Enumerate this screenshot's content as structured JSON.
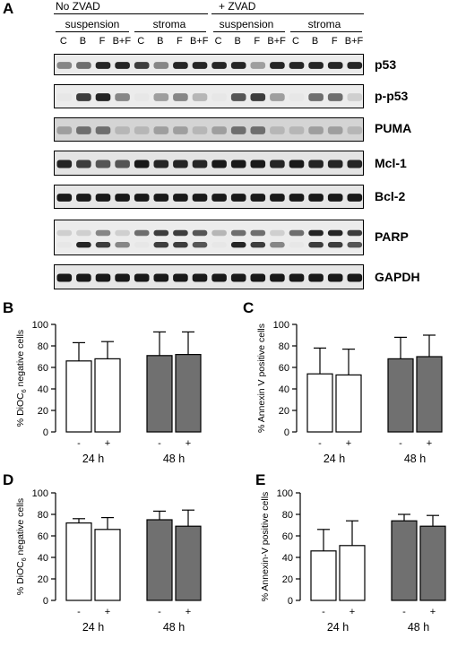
{
  "panel_a": {
    "letter": "A",
    "treatments": [
      {
        "label": "No ZVAD"
      },
      {
        "label": "+ ZVAD"
      }
    ],
    "groups": [
      "suspension",
      "stroma",
      "suspension",
      "stroma"
    ],
    "lanes": [
      "C",
      "B",
      "F",
      "B+F",
      "C",
      "B",
      "F",
      "B+F",
      "C",
      "B",
      "F",
      "B+F",
      "C",
      "B",
      "F",
      "B+F"
    ],
    "blots": [
      {
        "protein": "p53"
      },
      {
        "protein": "p-p53"
      },
      {
        "protein": "PUMA"
      },
      {
        "protein": "Mcl-1"
      },
      {
        "protein": "Bcl-2"
      },
      {
        "protein": "PARP"
      },
      {
        "protein": "GAPDH"
      }
    ]
  },
  "chart_data": [
    {
      "panel": "B",
      "type": "bar",
      "ylabel_main": "% DiOC",
      "ylabel_sub": "6",
      "ylabel_rest": " negative cells",
      "ylim": [
        0,
        100
      ],
      "yticks": [
        0,
        20,
        40,
        60,
        80,
        100
      ],
      "categories": [
        "-",
        "+",
        "-",
        "+"
      ],
      "groups": [
        "24 h",
        "48 h"
      ],
      "values": [
        66,
        68,
        71,
        72
      ],
      "errors": [
        17,
        16,
        22,
        21
      ],
      "colors": [
        "#ffffff",
        "#ffffff",
        "#707070",
        "#707070"
      ]
    },
    {
      "panel": "C",
      "type": "bar",
      "ylabel_main": "% Annexin V positive cells",
      "ylabel_sub": "",
      "ylabel_rest": "",
      "ylim": [
        0,
        100
      ],
      "yticks": [
        0,
        20,
        40,
        60,
        80,
        100
      ],
      "categories": [
        "-",
        "+",
        "-",
        "+"
      ],
      "groups": [
        "24 h",
        "48 h"
      ],
      "values": [
        54,
        53,
        68,
        70
      ],
      "errors": [
        24,
        24,
        20,
        20
      ],
      "colors": [
        "#ffffff",
        "#ffffff",
        "#707070",
        "#707070"
      ]
    },
    {
      "panel": "D",
      "type": "bar",
      "ylabel_main": "% DiOC",
      "ylabel_sub": "6",
      "ylabel_rest": " negative cells",
      "ylim": [
        0,
        100
      ],
      "yticks": [
        0,
        20,
        40,
        60,
        80,
        100
      ],
      "categories": [
        "-",
        "+",
        "-",
        "+"
      ],
      "groups": [
        "24 h",
        "48 h"
      ],
      "values": [
        72,
        66,
        75,
        69
      ],
      "errors": [
        4,
        11,
        8,
        15
      ],
      "colors": [
        "#ffffff",
        "#ffffff",
        "#707070",
        "#707070"
      ]
    },
    {
      "panel": "E",
      "type": "bar",
      "ylabel_main": "% Annexin-V positive cells",
      "ylabel_sub": "",
      "ylabel_rest": "",
      "ylim": [
        0,
        100
      ],
      "yticks": [
        0,
        20,
        40,
        60,
        80,
        100
      ],
      "categories": [
        "-",
        "+",
        "-",
        "+"
      ],
      "groups": [
        "24 h",
        "48 h"
      ],
      "values": [
        46,
        51,
        74,
        69
      ],
      "errors": [
        20,
        23,
        6,
        10
      ],
      "colors": [
        "#ffffff",
        "#ffffff",
        "#707070",
        "#707070"
      ]
    }
  ]
}
